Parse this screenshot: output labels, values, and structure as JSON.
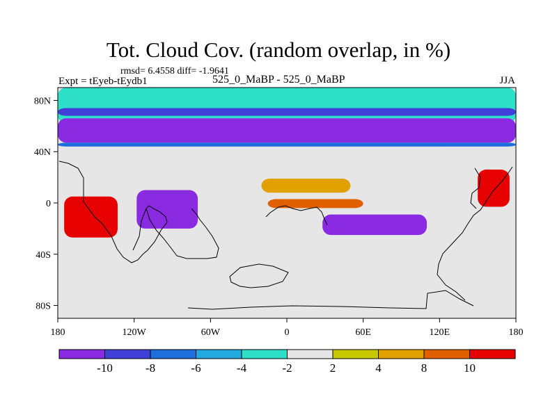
{
  "title": "Tot. Cloud Cov. (random overlap, in %)",
  "stats": "rmsd= 6.4558 diff= -1.9641",
  "left_label": "Expt = tEyeb-tEydb1",
  "center_label": "525_0_MaBP - 525_0_MaBP",
  "right_label": "JJA",
  "lat_ticks": [
    {
      "label": "80N",
      "lat": 80
    },
    {
      "label": "40N",
      "lat": 40
    },
    {
      "label": "0",
      "lat": 0
    },
    {
      "label": "40S",
      "lat": -40
    },
    {
      "label": "80S",
      "lat": -80
    }
  ],
  "lon_ticks": [
    {
      "label": "180",
      "lon": -180
    },
    {
      "label": "120W",
      "lon": -120
    },
    {
      "label": "60W",
      "lon": -60
    },
    {
      "label": "0",
      "lon": 0
    },
    {
      "label": "60E",
      "lon": 60
    },
    {
      "label": "120E",
      "lon": 120
    },
    {
      "label": "180",
      "lon": 180
    }
  ],
  "colorbar": {
    "colors": [
      "#8a2be2",
      "#4040d8",
      "#1e6edc",
      "#23a9de",
      "#2ee0c7",
      "#e6e6e6",
      "#c8c800",
      "#e0a000",
      "#e06000",
      "#e60000"
    ],
    "labels": [
      "-10",
      "-8",
      "-6",
      "-4",
      "-2",
      "2",
      "4",
      "8",
      "10"
    ]
  },
  "map_regions": [
    {
      "name": "arctic-band-cyan",
      "color": "#2ee0c7",
      "lon": [
        -180,
        180
      ],
      "lat": [
        62,
        90
      ]
    },
    {
      "name": "north-band-blue",
      "color": "#4040d8",
      "lon": [
        -180,
        180
      ],
      "lat": [
        68,
        74
      ]
    },
    {
      "name": "north-purple-band",
      "color": "#8a2be2",
      "lon": [
        -180,
        180
      ],
      "lat": [
        47,
        66
      ]
    },
    {
      "name": "north-band-edge",
      "color": "#1e6edc",
      "lon": [
        -180,
        180
      ],
      "lat": [
        44,
        47
      ]
    },
    {
      "name": "east-pacific-red",
      "color": "#e60000",
      "lon": [
        -175,
        -133
      ],
      "lat": [
        -27,
        5
      ]
    },
    {
      "name": "central-purple",
      "color": "#8a2be2",
      "lon": [
        -118,
        -70
      ],
      "lat": [
        -20,
        10
      ]
    },
    {
      "name": "south-atlantic-purple",
      "color": "#8a2be2",
      "lon": [
        28,
        110
      ],
      "lat": [
        -25,
        -9
      ]
    },
    {
      "name": "equatorial-orange",
      "color": "#e06000",
      "lon": [
        -15,
        60
      ],
      "lat": [
        -4,
        3
      ]
    },
    {
      "name": "north-atlantic-orange",
      "color": "#e0a000",
      "lon": [
        -20,
        50
      ],
      "lat": [
        8,
        19
      ]
    },
    {
      "name": "east-indian-red",
      "color": "#e60000",
      "lon": [
        150,
        175
      ],
      "lat": [
        -3,
        26
      ]
    }
  ]
}
